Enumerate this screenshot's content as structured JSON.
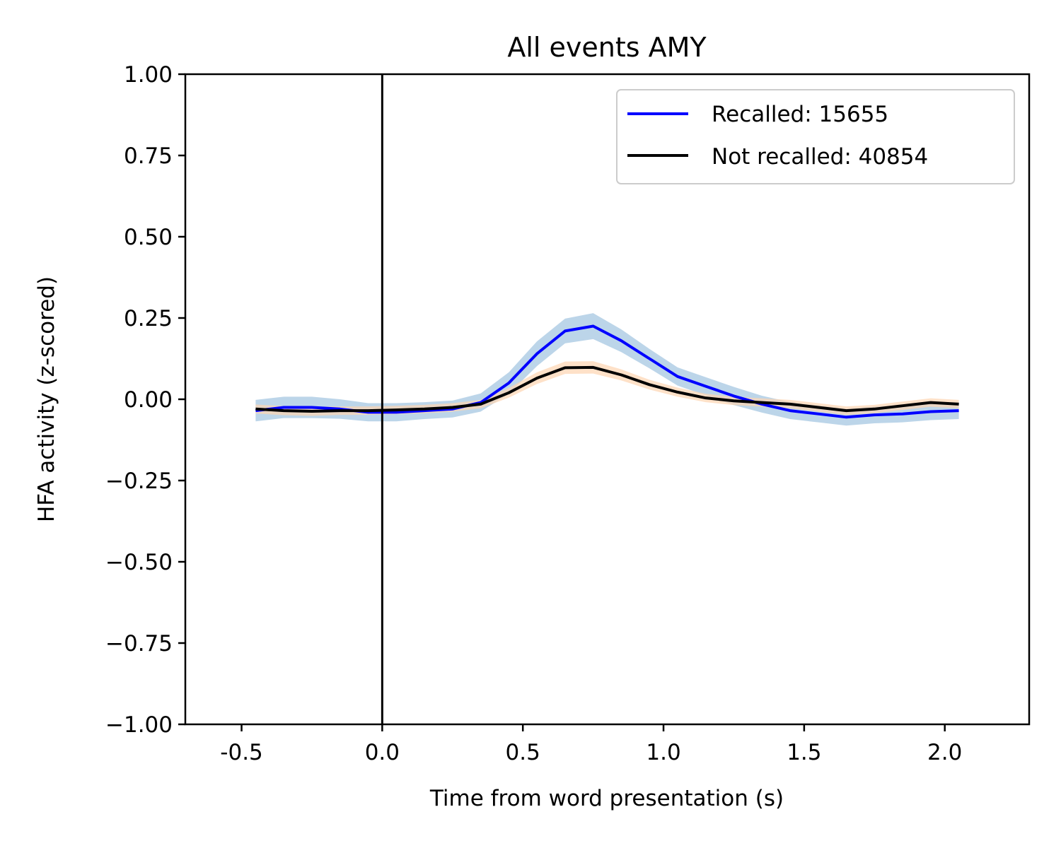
{
  "chart_data": {
    "type": "line",
    "title": "All events AMY",
    "xlabel": "Time from word presentation (s)",
    "ylabel": "HFA activity (z-scored)",
    "xlim": [
      -0.7,
      2.3
    ],
    "ylim": [
      -1.0,
      1.0
    ],
    "x_ticks": [
      -0.5,
      0.0,
      0.5,
      1.0,
      1.5,
      2.0
    ],
    "x_tick_labels": [
      "-0.5",
      "0.0",
      "0.5",
      "1.0",
      "1.5",
      "2.0"
    ],
    "y_ticks": [
      1.0,
      0.75,
      0.5,
      0.25,
      0.0,
      -0.25,
      -0.5,
      -0.75,
      -1.0
    ],
    "y_tick_labels": [
      "1.00",
      "0.75",
      "0.50",
      "0.25",
      "0.00",
      "−0.25",
      "−0.50",
      "−0.75",
      "−1.00"
    ],
    "vline_x": 0.0,
    "legend_position": "top-right",
    "x": [
      -0.45,
      -0.35,
      -0.25,
      -0.15,
      -0.05,
      0.05,
      0.15,
      0.25,
      0.35,
      0.45,
      0.55,
      0.65,
      0.75,
      0.85,
      0.95,
      1.05,
      1.15,
      1.25,
      1.35,
      1.45,
      1.55,
      1.65,
      1.75,
      1.85,
      1.95,
      2.05
    ],
    "series": [
      {
        "name": "Recalled: 15655",
        "color": "#0000ff",
        "band_color": "#b8d3e8",
        "values": [
          -0.035,
          -0.025,
          -0.025,
          -0.03,
          -0.04,
          -0.04,
          -0.035,
          -0.03,
          -0.01,
          0.05,
          0.14,
          0.21,
          0.225,
          0.18,
          0.125,
          0.07,
          0.04,
          0.01,
          -0.015,
          -0.035,
          -0.045,
          -0.055,
          -0.048,
          -0.045,
          -0.038,
          -0.035
        ],
        "ci": [
          0.033,
          0.033,
          0.033,
          0.03,
          0.028,
          0.028,
          0.026,
          0.026,
          0.028,
          0.033,
          0.038,
          0.038,
          0.04,
          0.035,
          0.03,
          0.028,
          0.028,
          0.028,
          0.026,
          0.026,
          0.026,
          0.026,
          0.026,
          0.026,
          0.026,
          0.026
        ]
      },
      {
        "name": "Not recalled: 40854",
        "color": "#000000",
        "band_color": "#fdd4b0",
        "values": [
          -0.03,
          -0.035,
          -0.037,
          -0.035,
          -0.035,
          -0.033,
          -0.03,
          -0.025,
          -0.015,
          0.02,
          0.065,
          0.097,
          0.098,
          0.075,
          0.045,
          0.022,
          0.004,
          -0.005,
          -0.01,
          -0.015,
          -0.025,
          -0.035,
          -0.03,
          -0.02,
          -0.01,
          -0.015
        ],
        "ci": [
          0.014,
          0.014,
          0.014,
          0.013,
          0.013,
          0.013,
          0.013,
          0.013,
          0.013,
          0.015,
          0.018,
          0.019,
          0.019,
          0.017,
          0.015,
          0.014,
          0.013,
          0.013,
          0.013,
          0.013,
          0.013,
          0.013,
          0.013,
          0.013,
          0.013,
          0.013
        ]
      }
    ]
  }
}
